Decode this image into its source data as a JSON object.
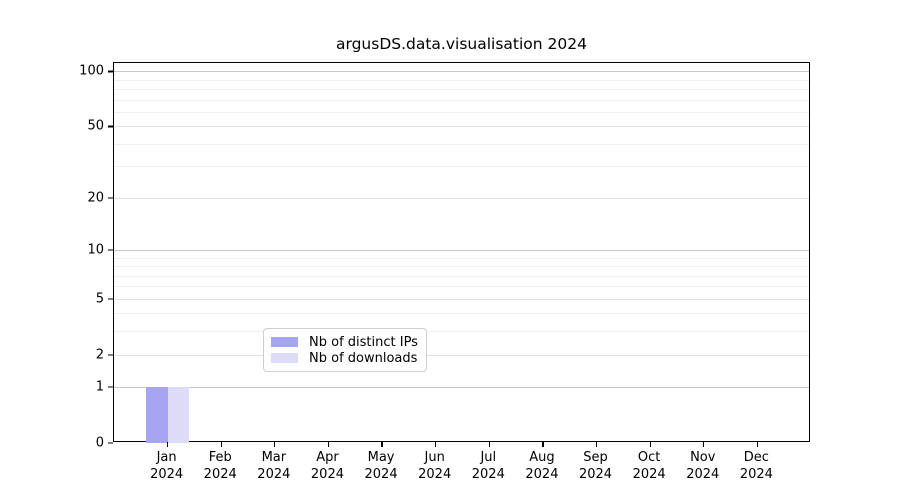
{
  "figure": {
    "title": "argusDS.data.visualisation 2024"
  },
  "chart_data": {
    "type": "bar",
    "title": "argusDS.data.visualisation 2024",
    "xlabel": "",
    "ylabel": "",
    "categories": [
      "Jan 2024",
      "Feb 2024",
      "Mar 2024",
      "Apr 2024",
      "May 2024",
      "Jun 2024",
      "Jul 2024",
      "Aug 2024",
      "Sep 2024",
      "Oct 2024",
      "Nov 2024",
      "Dec 2024"
    ],
    "x_ticks": [
      {
        "line1": "Jan",
        "line2": "2024"
      },
      {
        "line1": "Feb",
        "line2": "2024"
      },
      {
        "line1": "Mar",
        "line2": "2024"
      },
      {
        "line1": "Apr",
        "line2": "2024"
      },
      {
        "line1": "May",
        "line2": "2024"
      },
      {
        "line1": "Jun",
        "line2": "2024"
      },
      {
        "line1": "Jul",
        "line2": "2024"
      },
      {
        "line1": "Aug",
        "line2": "2024"
      },
      {
        "line1": "Sep",
        "line2": "2024"
      },
      {
        "line1": "Oct",
        "line2": "2024"
      },
      {
        "line1": "Nov",
        "line2": "2024"
      },
      {
        "line1": "Dec",
        "line2": "2024"
      }
    ],
    "series": [
      {
        "name": "Nb of distinct IPs",
        "color": "#a5a5f3",
        "values": [
          1,
          0,
          0,
          0,
          0,
          0,
          0,
          0,
          0,
          0,
          0,
          0
        ]
      },
      {
        "name": "Nb of downloads",
        "color": "#dcdcf9",
        "values": [
          1,
          0,
          0,
          0,
          0,
          0,
          0,
          0,
          0,
          0,
          0,
          0
        ]
      }
    ],
    "yscale": "log1p",
    "y_ticks": [
      0,
      1,
      2,
      5,
      10,
      20,
      50,
      100
    ],
    "y_minor_gridlines": [
      3,
      4,
      6,
      7,
      8,
      9,
      30,
      40,
      60,
      70,
      80,
      90
    ],
    "ylim": [
      0,
      111
    ],
    "grid": "horizontal major+minor",
    "legend": {
      "position": "lower center",
      "entries": [
        "Nb of distinct IPs",
        "Nb of downloads"
      ]
    },
    "colors": {
      "axis": "#000000",
      "grid_major": "#c6c6c6",
      "grid_labeled_minor": "#e2e2e2",
      "grid_minor": "#efefef",
      "bar_distinct_ips": "#a5a5f3",
      "bar_downloads": "#dcdcf9"
    }
  }
}
